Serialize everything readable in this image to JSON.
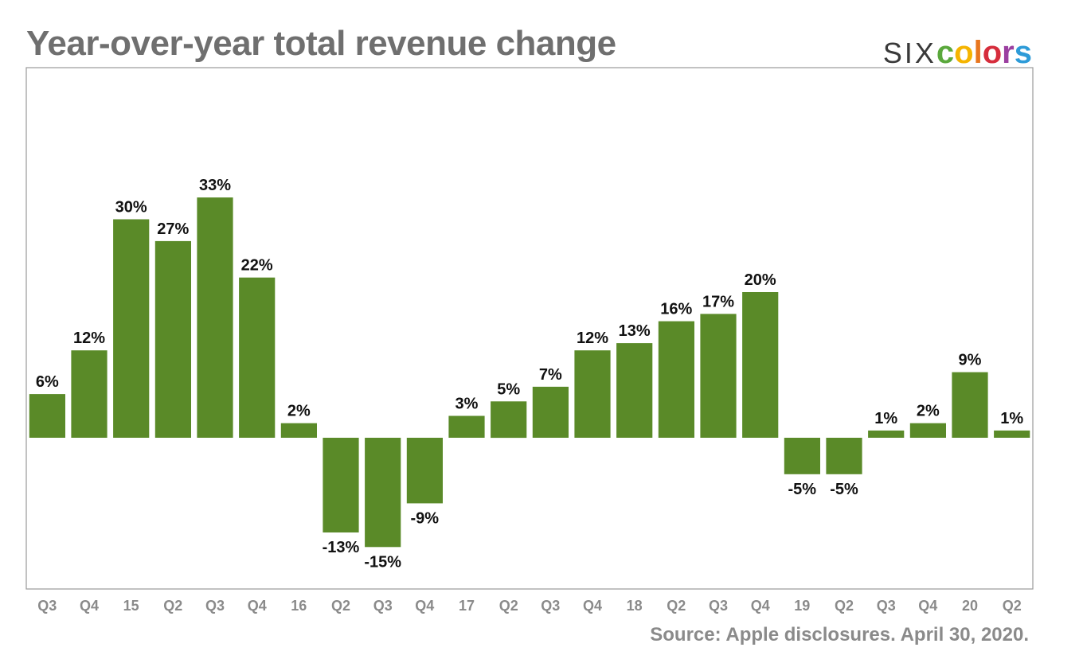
{
  "title": "Year-over-year total revenue change",
  "source": "Source: Apple disclosures. April 30, 2020.",
  "logo": {
    "prefix": "SIX",
    "letters": [
      {
        "ch": "c",
        "color": "#5aa83c"
      },
      {
        "ch": "o",
        "color": "#f5b400"
      },
      {
        "ch": "l",
        "color": "#e8761e"
      },
      {
        "ch": "o",
        "color": "#d62d3c"
      },
      {
        "ch": "r",
        "color": "#9b3fa0"
      },
      {
        "ch": "s",
        "color": "#2d9bd8"
      }
    ]
  },
  "colors": {
    "bar": "#5a8a28",
    "frame": "#9a9a9a",
    "tick": "#8a8a8a",
    "label": "#111111"
  },
  "chart_data": {
    "type": "bar",
    "title": "Year-over-year total revenue change",
    "categories": [
      "Q3",
      "Q4",
      "15",
      "Q2",
      "Q3",
      "Q4",
      "16",
      "Q2",
      "Q3",
      "Q4",
      "17",
      "Q2",
      "Q3",
      "Q4",
      "18",
      "Q2",
      "Q3",
      "Q4",
      "19",
      "Q2",
      "Q3",
      "Q4",
      "20",
      "Q2"
    ],
    "values": [
      6,
      12,
      30,
      27,
      33,
      22,
      2,
      -13,
      -15,
      -9,
      3,
      5,
      7,
      12,
      13,
      16,
      17,
      20,
      -5,
      -5,
      1,
      2,
      9,
      1
    ],
    "data_labels": [
      "6%",
      "12%",
      "30%",
      "27%",
      "33%",
      "22%",
      "2%",
      "-13%",
      "-15%",
      "-9%",
      "3%",
      "5%",
      "7%",
      "12%",
      "13%",
      "16%",
      "17%",
      "20%",
      "-5%",
      "-5%",
      "1%",
      "2%",
      "9%",
      "1%"
    ],
    "ylim": [
      -21,
      51
    ],
    "grid": false,
    "legend": "none",
    "xlabel": "",
    "ylabel": ""
  }
}
